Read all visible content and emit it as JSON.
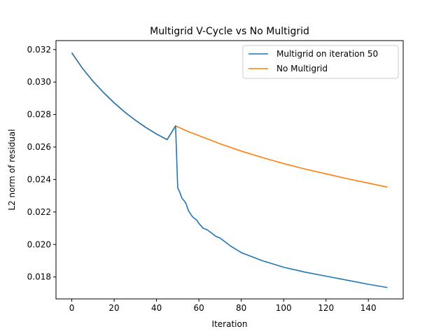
{
  "chart_data": {
    "type": "line",
    "title": "Multigrid V-Cycle vs No Multigrid",
    "xlabel": "Iteration",
    "ylabel": "L2 norm of residual",
    "xlim": [
      -7.45,
      156.45
    ],
    "ylim": [
      0.01665,
      0.03255
    ],
    "xticks": [
      0,
      20,
      40,
      60,
      80,
      100,
      120,
      140
    ],
    "yticks": [
      0.018,
      0.02,
      0.022,
      0.024,
      0.026,
      0.028,
      0.03,
      0.032
    ],
    "ytick_labels": [
      "0.018",
      "0.020",
      "0.022",
      "0.024",
      "0.026",
      "0.028",
      "0.030",
      "0.032"
    ],
    "grid": false,
    "legend_position": "upper right",
    "series": [
      {
        "name": "Multigrid on iteration 50",
        "color": "#1f77b4",
        "x": [
          0,
          5,
          10,
          15,
          20,
          25,
          30,
          35,
          40,
          45,
          49,
          50,
          51,
          52,
          53,
          54,
          55,
          56,
          57,
          58,
          59,
          60,
          62,
          64,
          66,
          68,
          70,
          75,
          80,
          90,
          100,
          110,
          120,
          130,
          140,
          149
        ],
        "y": [
          0.0318,
          0.03085,
          0.03005,
          0.02935,
          0.02872,
          0.02815,
          0.02765,
          0.0272,
          0.0268,
          0.02645,
          0.0273,
          0.0235,
          0.0232,
          0.02285,
          0.0227,
          0.0225,
          0.0221,
          0.0219,
          0.0217,
          0.0216,
          0.0215,
          0.0213,
          0.021,
          0.0209,
          0.0207,
          0.0205,
          0.0204,
          0.0199,
          0.0195,
          0.019,
          0.0186,
          0.0183,
          0.01805,
          0.0178,
          0.01755,
          0.01735
        ]
      },
      {
        "name": "No Multigrid",
        "color": "#ff7f0e",
        "x": [
          0,
          5,
          10,
          15,
          20,
          25,
          30,
          35,
          40,
          45,
          49,
          55,
          60,
          70,
          80,
          90,
          100,
          110,
          120,
          130,
          140,
          149
        ],
        "y": [
          0.0318,
          0.03085,
          0.03005,
          0.02935,
          0.02872,
          0.02815,
          0.02765,
          0.0272,
          0.0268,
          0.02645,
          0.0273,
          0.02695,
          0.0267,
          0.0262,
          0.02575,
          0.02535,
          0.02498,
          0.02465,
          0.02435,
          0.02405,
          0.02378,
          0.02353
        ]
      }
    ]
  }
}
